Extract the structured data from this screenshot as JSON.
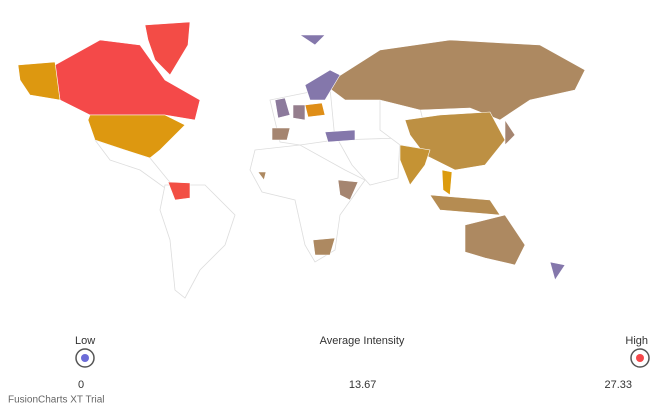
{
  "chart_data": {
    "type": "choropleth",
    "categories": [
      null,
      null,
      null,
      null,
      null,
      null,
      null,
      null,
      null,
      null,
      null,
      null,
      null,
      null,
      null,
      null,
      null,
      null,
      null,
      null,
      null,
      null,
      null
    ],
    "values": [
      26.5,
      27,
      14.5,
      14.5,
      8,
      10,
      11,
      8,
      3,
      3,
      3,
      16,
      4,
      5,
      7,
      3,
      7,
      8,
      26,
      14,
      9,
      7,
      8
    ],
    "legend": {
      "title": "Average Intensity",
      "low_label": "Low",
      "high_label": "High",
      "ticks": [
        0,
        13.67,
        27.33
      ],
      "colors": [
        "#6c6cd8",
        "#db9d0c",
        "#f5474a"
      ]
    }
  },
  "footer": "FusionCharts XT Trial"
}
